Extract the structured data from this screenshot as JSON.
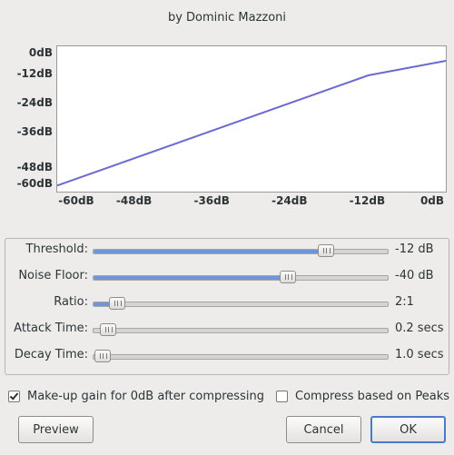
{
  "header": {
    "byline": "by Dominic Mazzoni"
  },
  "chart_data": {
    "type": "line",
    "title": "",
    "xlabel": "",
    "ylabel": "",
    "x_ticks": [
      "-60dB",
      "-48dB",
      "-36dB",
      "-24dB",
      "-12dB",
      "0dB"
    ],
    "y_ticks": [
      "0dB",
      "-12dB",
      "-24dB",
      "-36dB",
      "-48dB",
      "-60dB"
    ],
    "xlim": [
      -60,
      0
    ],
    "ylim": [
      -60,
      0
    ],
    "series": [
      {
        "x": [
          -60,
          -12,
          0
        ],
        "y": [
          -57.5,
          -12,
          -6
        ],
        "color": "#6a6ad0"
      }
    ],
    "grid": false
  },
  "sliders": [
    {
      "label": "Threshold:",
      "value_text": "-12 dB",
      "fraction": 0.79,
      "filled": true
    },
    {
      "label": "Noise Floor:",
      "value_text": "-40 dB",
      "fraction": 0.66,
      "filled": true
    },
    {
      "label": "Ratio:",
      "value_text": "2:1",
      "fraction": 0.08,
      "filled": true
    },
    {
      "label": "Attack Time:",
      "value_text": "0.2 secs",
      "fraction": 0.05,
      "filled": false
    },
    {
      "label": "Decay Time:",
      "value_text": "1.0 secs",
      "fraction": 0.03,
      "filled": false
    }
  ],
  "options": {
    "makeup_gain": {
      "label": "Make-up gain for 0dB after compressing",
      "checked": true
    },
    "compress_peaks": {
      "label": "Compress based on Peaks",
      "checked": false
    }
  },
  "buttons": {
    "preview": "Preview",
    "cancel": "Cancel",
    "ok": "OK"
  }
}
